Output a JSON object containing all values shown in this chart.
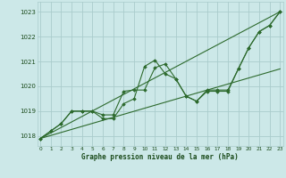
{
  "x_data": [
    0,
    1,
    2,
    3,
    4,
    5,
    6,
    7,
    8,
    9,
    10,
    11,
    12,
    13,
    14,
    15,
    16,
    17,
    18,
    19,
    20,
    21,
    22,
    23
  ],
  "line1": [
    1017.9,
    1018.2,
    1018.5,
    1019.0,
    1019.0,
    1019.0,
    1018.85,
    1018.85,
    1019.8,
    1019.85,
    1019.85,
    1020.75,
    1020.9,
    1020.3,
    1019.6,
    1019.4,
    1019.8,
    1019.8,
    1019.8,
    1020.7,
    1021.55,
    1022.2,
    1022.45,
    1023.0
  ],
  "line2": [
    1017.9,
    1018.2,
    1018.5,
    1019.0,
    1019.0,
    1019.0,
    1018.7,
    1018.7,
    1019.3,
    1019.5,
    1020.8,
    1021.05,
    1020.5,
    1020.3,
    1019.6,
    1019.4,
    1019.85,
    1019.85,
    1019.85,
    1020.7,
    1021.55,
    1022.2,
    1022.45,
    1023.0
  ],
  "trend1_x": [
    0,
    23
  ],
  "trend1_y": [
    1017.9,
    1023.0
  ],
  "trend2_x": [
    0,
    23
  ],
  "trend2_y": [
    1017.9,
    1020.7
  ],
  "ylim": [
    1017.6,
    1023.4
  ],
  "xlim": [
    -0.3,
    23.3
  ],
  "yticks": [
    1018,
    1019,
    1020,
    1021,
    1022,
    1023
  ],
  "xticks": [
    0,
    1,
    2,
    3,
    4,
    5,
    6,
    7,
    8,
    9,
    10,
    11,
    12,
    13,
    14,
    15,
    16,
    17,
    18,
    19,
    20,
    21,
    22,
    23
  ],
  "xlabel": "Graphe pression niveau de la mer (hPa)",
  "bg_color": "#cce8e8",
  "grid_color": "#aacccc",
  "line_color": "#2d6a2d",
  "trend_color": "#2d6a2d",
  "label_color": "#1a4a1a"
}
